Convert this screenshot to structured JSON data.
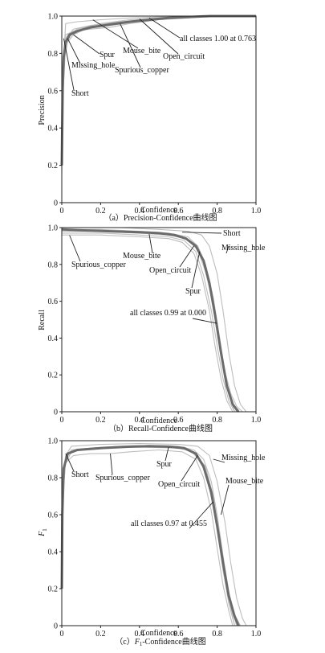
{
  "chart_data": [
    {
      "type": "line",
      "title": "",
      "caption": "（a）Precision-Confidence曲线图",
      "xlabel": "Confidence",
      "ylabel": "Precision",
      "xlim": [
        0,
        1
      ],
      "ylim": [
        0,
        1
      ],
      "xticks": [
        "0",
        "0.2",
        "0.4",
        "0.6",
        "0.8",
        "1.0"
      ],
      "yticks": [
        "0",
        "0.2",
        "0.4",
        "0.6",
        "0.8",
        "1.0"
      ],
      "grid": false,
      "series": [
        {
          "name": "Spur",
          "x": [
            0,
            0.01,
            0.03,
            0.06,
            0.12,
            0.25,
            0.45,
            0.6,
            1.0
          ],
          "y": [
            0.16,
            0.75,
            0.86,
            0.9,
            0.93,
            0.96,
            0.98,
            1.0,
            1.0
          ]
        },
        {
          "name": "Missing_hole",
          "x": [
            0,
            0.01,
            0.03,
            0.08,
            0.2,
            0.35,
            0.5,
            0.65,
            1.0
          ],
          "y": [
            0.4,
            0.8,
            0.9,
            0.93,
            0.96,
            0.98,
            0.99,
            1.0,
            1.0
          ]
        },
        {
          "name": "Short",
          "x": [
            0,
            0.02,
            0.05,
            0.12,
            0.25,
            0.4,
            0.55,
            0.7,
            1.0
          ],
          "y": [
            0.45,
            0.85,
            0.9,
            0.93,
            0.95,
            0.97,
            0.99,
            1.0,
            1.0
          ]
        },
        {
          "name": "Mouse_bite",
          "x": [
            0,
            0.02,
            0.06,
            0.15,
            0.3,
            0.45,
            0.6,
            0.72,
            1.0
          ],
          "y": [
            0.5,
            0.88,
            0.93,
            0.95,
            0.97,
            0.98,
            0.99,
            1.0,
            1.0
          ]
        },
        {
          "name": "Spurious_copper",
          "x": [
            0,
            0.02,
            0.06,
            0.15,
            0.25,
            0.35,
            0.5,
            0.65,
            0.75,
            1.0
          ],
          "y": [
            0.55,
            0.9,
            0.92,
            0.93,
            0.94,
            0.96,
            0.98,
            0.99,
            1.0,
            1.0
          ]
        },
        {
          "name": "Open_circuit",
          "x": [
            0,
            0.02,
            0.08,
            0.2,
            0.35,
            0.5,
            0.65,
            1.0
          ],
          "y": [
            0.6,
            0.96,
            0.97,
            0.98,
            0.99,
            0.995,
            1.0,
            1.0
          ]
        },
        {
          "name": "all classes 1.00 at 0.763",
          "x": [
            0,
            0.005,
            0.01,
            0.02,
            0.04,
            0.08,
            0.15,
            0.25,
            0.35,
            0.45,
            0.55,
            0.65,
            0.763,
            1.0
          ],
          "y": [
            0.2,
            0.62,
            0.78,
            0.86,
            0.9,
            0.92,
            0.94,
            0.955,
            0.97,
            0.98,
            0.99,
            0.995,
            1.0,
            1.0
          ]
        }
      ],
      "annotations": [
        "Short",
        "Missing_hole",
        "Spur",
        "Mouse_bite",
        "all classes 1.00 at 0.763",
        "Open_circuit",
        "Spurious_copper"
      ]
    },
    {
      "type": "line",
      "title": "",
      "caption": "（b）Recall-Confidence曲线图",
      "xlabel": "Confidence",
      "ylabel": "Recall",
      "xlim": [
        0,
        1
      ],
      "ylim": [
        0,
        1
      ],
      "xticks": [
        "0",
        "0.2",
        "0.4",
        "0.6",
        "0.8",
        "1.0"
      ],
      "yticks": [
        "0",
        "0.2",
        "0.4",
        "0.6",
        "0.8",
        "1.0"
      ],
      "grid": false,
      "series": [
        {
          "name": "Short",
          "x": [
            0,
            0.2,
            0.4,
            0.55,
            0.65,
            0.7,
            0.74,
            0.78,
            0.81,
            0.84,
            0.87,
            0.9,
            0.93
          ],
          "y": [
            0.99,
            0.99,
            0.98,
            0.97,
            0.95,
            0.9,
            0.78,
            0.6,
            0.4,
            0.22,
            0.1,
            0.03,
            0.0
          ]
        },
        {
          "name": "Missing_hole",
          "x": [
            0,
            0.3,
            0.5,
            0.65,
            0.72,
            0.76,
            0.8,
            0.83,
            0.86,
            0.89,
            0.92,
            0.95
          ],
          "y": [
            1.0,
            1.0,
            0.99,
            0.98,
            0.96,
            0.9,
            0.75,
            0.55,
            0.32,
            0.14,
            0.04,
            0.0
          ]
        },
        {
          "name": "Spurious_copper",
          "x": [
            0,
            0.2,
            0.4,
            0.55,
            0.62,
            0.68,
            0.72,
            0.76,
            0.79,
            0.82,
            0.85,
            0.88
          ],
          "y": [
            0.96,
            0.96,
            0.95,
            0.94,
            0.92,
            0.86,
            0.74,
            0.55,
            0.35,
            0.18,
            0.06,
            0.0
          ]
        },
        {
          "name": "Mouse_bite",
          "x": [
            0,
            0.2,
            0.4,
            0.55,
            0.64,
            0.7,
            0.74,
            0.78,
            0.81,
            0.84,
            0.87,
            0.9
          ],
          "y": [
            0.98,
            0.98,
            0.97,
            0.96,
            0.94,
            0.88,
            0.76,
            0.58,
            0.38,
            0.2,
            0.07,
            0.0
          ]
        },
        {
          "name": "Open_circuit",
          "x": [
            0,
            0.2,
            0.4,
            0.55,
            0.63,
            0.69,
            0.73,
            0.77,
            0.8,
            0.83,
            0.86,
            0.89
          ],
          "y": [
            0.97,
            0.97,
            0.96,
            0.95,
            0.93,
            0.87,
            0.74,
            0.55,
            0.36,
            0.18,
            0.06,
            0.0
          ]
        },
        {
          "name": "Spur",
          "x": [
            0,
            0.2,
            0.4,
            0.55,
            0.64,
            0.7,
            0.74,
            0.78,
            0.81,
            0.84,
            0.86,
            0.89
          ],
          "y": [
            0.98,
            0.98,
            0.97,
            0.96,
            0.94,
            0.9,
            0.8,
            0.62,
            0.42,
            0.22,
            0.1,
            0.0
          ]
        },
        {
          "name": "all classes 0.99 at 0.000",
          "x": [
            0,
            0.1,
            0.25,
            0.4,
            0.5,
            0.58,
            0.64,
            0.69,
            0.73,
            0.76,
            0.79,
            0.82,
            0.85,
            0.88,
            0.91
          ],
          "y": [
            0.99,
            0.985,
            0.98,
            0.975,
            0.97,
            0.96,
            0.94,
            0.9,
            0.82,
            0.7,
            0.52,
            0.32,
            0.14,
            0.04,
            0.0
          ]
        }
      ],
      "annotations": [
        "Short",
        "Missing_hole",
        "Spurious_copper",
        "Mouse_bite",
        "Open_circuit",
        "Spur",
        "all classes 0.99 at 0.000"
      ]
    },
    {
      "type": "line",
      "title": "",
      "caption_prefix": "（c）",
      "caption_italic": "F",
      "caption_sub": "1",
      "caption_suffix": "-Confidence曲线图",
      "xlabel": "Confidence",
      "ylabel": "F",
      "ylabel_sub": "1",
      "xlim": [
        0,
        1
      ],
      "ylim": [
        0,
        1
      ],
      "xticks": [
        "0",
        "0.2",
        "0.4",
        "0.6",
        "0.8",
        "1.0"
      ],
      "yticks": [
        "0",
        "0.2",
        "0.4",
        "0.6",
        "0.8",
        "1.0"
      ],
      "grid": false,
      "series": [
        {
          "name": "Short",
          "x": [
            0,
            0.005,
            0.02,
            0.05,
            0.15,
            0.3,
            0.45,
            0.6,
            0.68,
            0.73,
            0.77,
            0.8,
            0.83,
            0.86,
            0.89,
            0.92
          ],
          "y": [
            0.3,
            0.75,
            0.9,
            0.95,
            0.96,
            0.97,
            0.975,
            0.97,
            0.95,
            0.9,
            0.78,
            0.6,
            0.38,
            0.18,
            0.06,
            0.0
          ]
        },
        {
          "name": "Spurious_copper",
          "x": [
            0,
            0.005,
            0.02,
            0.06,
            0.15,
            0.25,
            0.35,
            0.5,
            0.62,
            0.69,
            0.73,
            0.77,
            0.8,
            0.83,
            0.86,
            0.88
          ],
          "y": [
            0.25,
            0.7,
            0.88,
            0.92,
            0.93,
            0.93,
            0.94,
            0.95,
            0.94,
            0.9,
            0.8,
            0.62,
            0.42,
            0.22,
            0.08,
            0.0
          ]
        },
        {
          "name": "Spur",
          "x": [
            0,
            0.005,
            0.02,
            0.05,
            0.15,
            0.3,
            0.45,
            0.6,
            0.67,
            0.72,
            0.76,
            0.8,
            0.83,
            0.86,
            0.89
          ],
          "y": [
            0.2,
            0.7,
            0.88,
            0.94,
            0.96,
            0.97,
            0.97,
            0.965,
            0.94,
            0.88,
            0.74,
            0.55,
            0.34,
            0.15,
            0.0
          ]
        },
        {
          "name": "Missing_hole",
          "x": [
            0,
            0.005,
            0.02,
            0.05,
            0.2,
            0.4,
            0.6,
            0.7,
            0.76,
            0.8,
            0.84,
            0.87,
            0.9,
            0.93,
            0.95
          ],
          "y": [
            0.35,
            0.8,
            0.92,
            0.97,
            0.98,
            0.985,
            0.98,
            0.97,
            0.92,
            0.78,
            0.56,
            0.34,
            0.15,
            0.04,
            0.0
          ]
        },
        {
          "name": "Mouse_bite",
          "x": [
            0,
            0.005,
            0.02,
            0.05,
            0.2,
            0.4,
            0.6,
            0.68,
            0.74,
            0.78,
            0.81,
            0.84,
            0.87,
            0.9
          ],
          "y": [
            0.3,
            0.78,
            0.9,
            0.95,
            0.96,
            0.97,
            0.965,
            0.94,
            0.86,
            0.7,
            0.5,
            0.3,
            0.12,
            0.0
          ]
        },
        {
          "name": "Open_circuit",
          "x": [
            0,
            0.005,
            0.02,
            0.05,
            0.2,
            0.4,
            0.6,
            0.68,
            0.73,
            0.77,
            0.8,
            0.83,
            0.86,
            0.89
          ],
          "y": [
            0.28,
            0.76,
            0.9,
            0.95,
            0.96,
            0.965,
            0.96,
            0.94,
            0.87,
            0.72,
            0.52,
            0.3,
            0.12,
            0.0
          ]
        },
        {
          "name": "all classes 0.97 at 0.455",
          "x": [
            0,
            0.003,
            0.01,
            0.03,
            0.08,
            0.2,
            0.35,
            0.455,
            0.55,
            0.63,
            0.69,
            0.73,
            0.77,
            0.8,
            0.83,
            0.86,
            0.89,
            0.91
          ],
          "y": [
            0.2,
            0.6,
            0.85,
            0.93,
            0.95,
            0.96,
            0.968,
            0.97,
            0.968,
            0.96,
            0.93,
            0.86,
            0.72,
            0.54,
            0.34,
            0.16,
            0.05,
            0.0
          ]
        }
      ],
      "annotations": [
        "Short",
        "Spurious_copper",
        "Spur",
        "Open_circuit",
        "Missing_hole",
        "Mouse_bite",
        "all classes 0.97 at 0.455"
      ]
    }
  ]
}
